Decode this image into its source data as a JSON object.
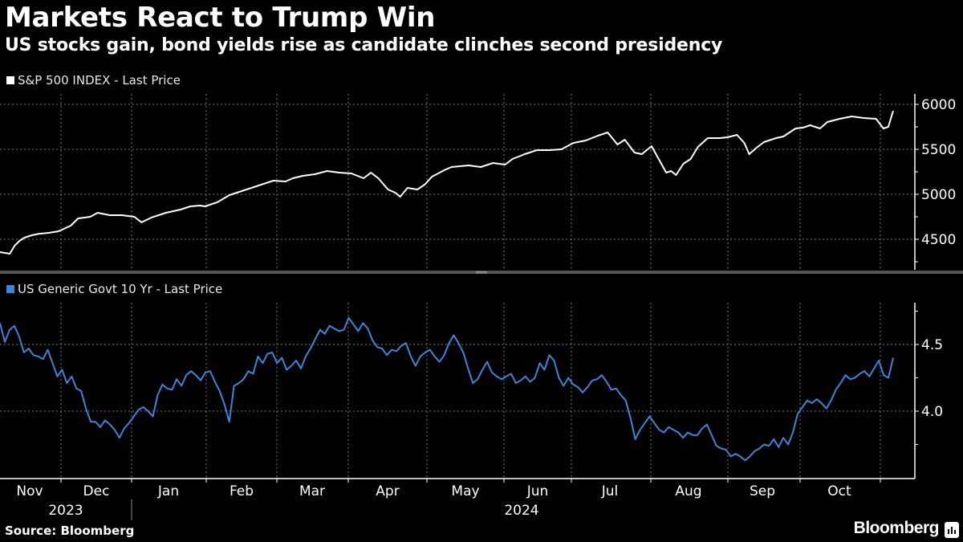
{
  "header": {
    "title": "Markets React to Trump Win",
    "subtitle": "US stocks gain, bond yields rise as candidate clinches second presidency"
  },
  "footer": {
    "source": "Source: Bloomberg",
    "brand": "Bloomberg"
  },
  "colors": {
    "background": "#000000",
    "spx": "#ffffff",
    "yield": "#3d85d8"
  },
  "chart_data": [
    {
      "type": "line",
      "title": "S&P 500 INDEX - Last Price",
      "legend": "top-left",
      "ylim": [
        4200,
        6100
      ],
      "yticks": [
        4500,
        5000,
        5500,
        6000
      ],
      "ytick_labels": [
        "4500",
        "5000",
        "5500",
        "6000"
      ],
      "grid": true,
      "series": [
        {
          "name": "S&P 500 INDEX - Last Price",
          "x": [
            "2023-11-06",
            "2023-11-10",
            "2023-11-12",
            "2023-11-14",
            "2023-11-16",
            "2023-11-19",
            "2023-11-22",
            "2023-11-26",
            "2023-11-30",
            "2023-12-05",
            "2023-12-08",
            "2023-12-13",
            "2023-12-16",
            "2023-12-21",
            "2023-12-26",
            "2023-12-31",
            "2024-01-03",
            "2024-01-07",
            "2024-01-13",
            "2024-01-19",
            "2024-01-23",
            "2024-01-27",
            "2024-01-29",
            "2024-02-03",
            "2024-02-08",
            "2024-02-11",
            "2024-02-15",
            "2024-02-18",
            "2024-02-21",
            "2024-02-26",
            "2024-03-02",
            "2024-03-05",
            "2024-03-09",
            "2024-03-14",
            "2024-03-19",
            "2024-03-24",
            "2024-03-29",
            "2024-04-03",
            "2024-04-06",
            "2024-04-09",
            "2024-04-13",
            "2024-04-16",
            "2024-04-18",
            "2024-04-21",
            "2024-04-25",
            "2024-04-28",
            "2024-05-01",
            "2024-05-06",
            "2024-05-09",
            "2024-05-16",
            "2024-05-21",
            "2024-05-26",
            "2024-05-31",
            "2024-06-03",
            "2024-06-08",
            "2024-06-13",
            "2024-06-18",
            "2024-06-23",
            "2024-06-28",
            "2024-07-03",
            "2024-07-08",
            "2024-07-12",
            "2024-07-16",
            "2024-07-19",
            "2024-07-23",
            "2024-07-26",
            "2024-07-30",
            "2024-08-05",
            "2024-08-07",
            "2024-08-09",
            "2024-08-12",
            "2024-08-15",
            "2024-08-18",
            "2024-08-22",
            "2024-08-27",
            "2024-08-30",
            "2024-09-03",
            "2024-09-06",
            "2024-09-08",
            "2024-09-11",
            "2024-09-14",
            "2024-09-19",
            "2024-09-22",
            "2024-09-27",
            "2024-09-30",
            "2024-10-03",
            "2024-10-07",
            "2024-10-10",
            "2024-10-15",
            "2024-10-20",
            "2024-10-25",
            "2024-10-30",
            "2024-11-02",
            "2024-11-04",
            "2024-11-06"
          ],
          "values": [
            4357,
            4339,
            4429,
            4482,
            4518,
            4545,
            4562,
            4571,
            4589,
            4652,
            4732,
            4750,
            4795,
            4768,
            4768,
            4750,
            4688,
            4741,
            4795,
            4830,
            4866,
            4875,
            4866,
            4911,
            4991,
            5018,
            5054,
            5080,
            5107,
            5152,
            5143,
            5179,
            5205,
            5223,
            5259,
            5241,
            5232,
            5179,
            5241,
            5179,
            5054,
            5018,
            4973,
            5071,
            5054,
            5107,
            5196,
            5268,
            5304,
            5321,
            5304,
            5348,
            5330,
            5393,
            5446,
            5491,
            5491,
            5500,
            5571,
            5598,
            5652,
            5688,
            5554,
            5607,
            5464,
            5446,
            5536,
            5241,
            5259,
            5214,
            5339,
            5393,
            5527,
            5625,
            5625,
            5634,
            5661,
            5571,
            5446,
            5518,
            5580,
            5625,
            5643,
            5732,
            5741,
            5768,
            5732,
            5804,
            5839,
            5866,
            5848,
            5839,
            5732,
            5750,
            5929
          ]
        }
      ]
    },
    {
      "type": "line",
      "title": "US Generic Govt 10 Yr - Last Price",
      "legend": "top-left",
      "ylim": [
        3.5,
        4.8
      ],
      "yticks": [
        4.0,
        4.5
      ],
      "ytick_labels": [
        "4.0",
        "4.5"
      ],
      "grid": true,
      "xtick_labels": [
        "Nov",
        "Dec",
        "Jan",
        "Feb",
        "Mar",
        "Apr",
        "May",
        "Jun",
        "Jul",
        "Aug",
        "Sep",
        "Oct"
      ],
      "year_labels": [
        "2023",
        "2024"
      ],
      "series": [
        {
          "name": "US Generic Govt 10 Yr - Last Price",
          "values": [
            4.66,
            4.52,
            4.61,
            4.64,
            4.56,
            4.44,
            4.47,
            4.42,
            4.41,
            4.39,
            4.46,
            4.36,
            4.26,
            4.31,
            4.21,
            4.26,
            4.17,
            4.15,
            4.02,
            3.92,
            3.92,
            3.88,
            3.93,
            3.9,
            3.86,
            3.8,
            3.87,
            3.91,
            3.96,
            4.01,
            4.03,
            4.0,
            3.96,
            4.12,
            4.2,
            4.17,
            4.16,
            4.24,
            4.19,
            4.27,
            4.3,
            4.27,
            4.23,
            4.29,
            4.3,
            4.22,
            4.15,
            4.05,
            3.92,
            4.19,
            4.21,
            4.24,
            4.3,
            4.28,
            4.41,
            4.36,
            4.43,
            4.44,
            4.36,
            4.4,
            4.31,
            4.34,
            4.38,
            4.32,
            4.41,
            4.47,
            4.54,
            4.61,
            4.58,
            4.64,
            4.62,
            4.6,
            4.61,
            4.7,
            4.65,
            4.6,
            4.66,
            4.62,
            4.53,
            4.48,
            4.47,
            4.42,
            4.46,
            4.45,
            4.49,
            4.51,
            4.41,
            4.34,
            4.41,
            4.44,
            4.46,
            4.41,
            4.37,
            4.42,
            4.51,
            4.57,
            4.51,
            4.44,
            4.32,
            4.21,
            4.24,
            4.31,
            4.37,
            4.29,
            4.26,
            4.24,
            4.26,
            4.28,
            4.21,
            4.23,
            4.26,
            4.22,
            4.25,
            4.36,
            4.31,
            4.42,
            4.38,
            4.25,
            4.19,
            4.25,
            4.2,
            4.18,
            4.14,
            4.18,
            4.23,
            4.24,
            4.27,
            4.22,
            4.16,
            4.17,
            4.12,
            4.08,
            3.95,
            3.79,
            3.86,
            3.91,
            3.96,
            3.91,
            3.86,
            3.84,
            3.88,
            3.86,
            3.84,
            3.8,
            3.84,
            3.82,
            3.82,
            3.87,
            3.9,
            3.82,
            3.74,
            3.72,
            3.71,
            3.66,
            3.68,
            3.66,
            3.63,
            3.66,
            3.7,
            3.72,
            3.75,
            3.74,
            3.79,
            3.73,
            3.8,
            3.75,
            3.84,
            3.98,
            4.03,
            4.08,
            4.06,
            4.09,
            4.06,
            4.02,
            4.08,
            4.16,
            4.21,
            4.27,
            4.24,
            4.25,
            4.28,
            4.3,
            4.26,
            4.32,
            4.38,
            4.27,
            4.25,
            4.4
          ]
        }
      ]
    }
  ]
}
